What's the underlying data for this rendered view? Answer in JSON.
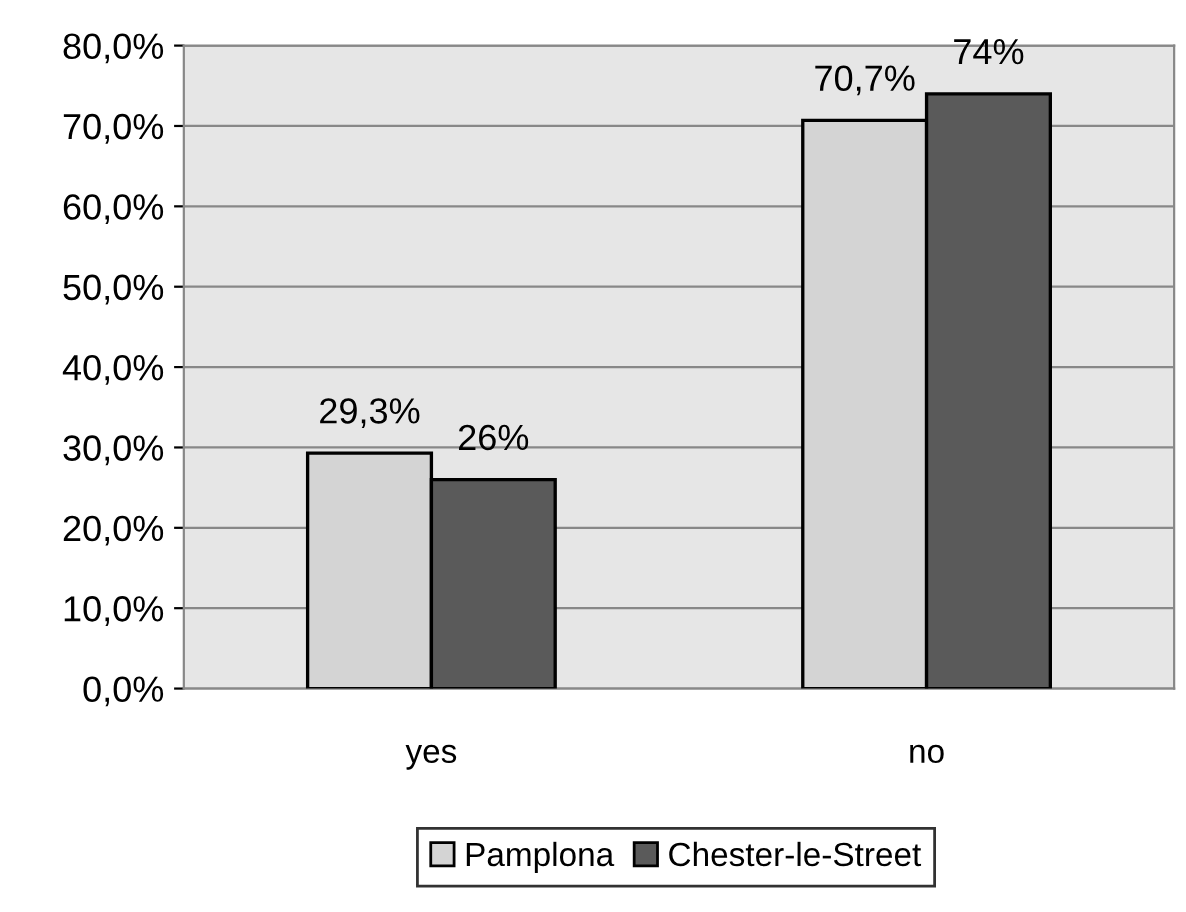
{
  "chart_data": {
    "type": "bar",
    "categories": [
      "yes",
      "no"
    ],
    "series": [
      {
        "name": "Pamplona",
        "color": "#d4d4d4",
        "values": [
          29.3,
          70.7
        ],
        "value_labels": [
          "29,3%",
          "70,7%"
        ]
      },
      {
        "name": "Chester-le-Street",
        "color": "#5a5a5a",
        "values": [
          26,
          74
        ],
        "value_labels": [
          "26%",
          "74%"
        ]
      }
    ],
    "ylim": [
      0,
      80
    ],
    "yticks": [
      {
        "value": 0,
        "label": "0,0%"
      },
      {
        "value": 10,
        "label": "10,0%"
      },
      {
        "value": 20,
        "label": "20,0%"
      },
      {
        "value": 30,
        "label": "30,0%"
      },
      {
        "value": 40,
        "label": "40,0%"
      },
      {
        "value": 50,
        "label": "50,0%"
      },
      {
        "value": 60,
        "label": "60,0%"
      },
      {
        "value": 70,
        "label": "70,0%"
      },
      {
        "value": 80,
        "label": "80,0%"
      }
    ],
    "grid": "y",
    "legend": "bottom"
  }
}
